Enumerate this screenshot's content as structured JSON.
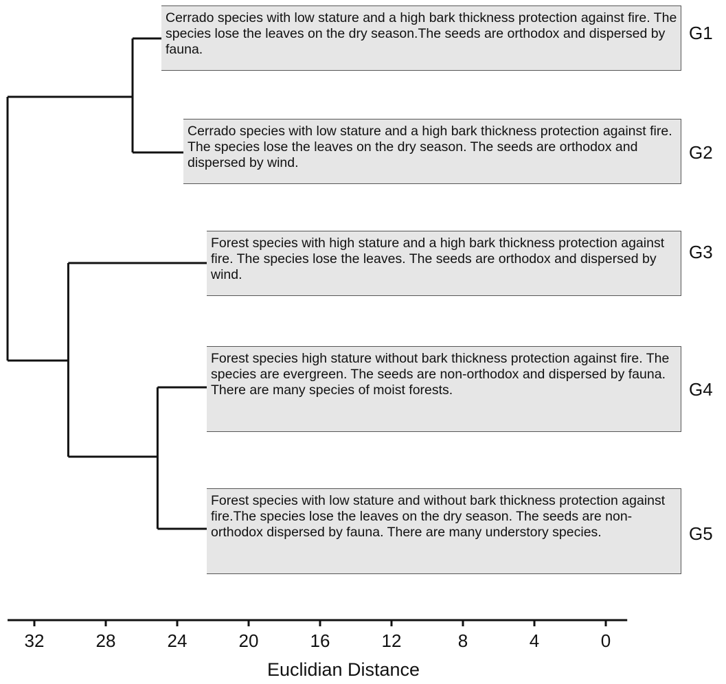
{
  "groups": [
    {
      "id": "G1",
      "label": "G1",
      "text": "Cerrado species with low stature and a high bark thickness protection against fire. The species lose the leaves on the dry season.The seeds are orthodox and dispersed by fauna."
    },
    {
      "id": "G2",
      "label": "G2",
      "text": "Cerrado species with low stature and a high bark thickness protection against fire. The species lose the leaves on the dry season. The seeds are orthodox and dispersed by wind."
    },
    {
      "id": "G3",
      "label": "G3",
      "text": "Forest species with high stature and a high bark thickness protection against fire. The species lose the leaves. The seeds are orthodox and dispersed by wind."
    },
    {
      "id": "G4",
      "label": "G4",
      "text": "Forest species high stature without bark thickness protection against fire. The species are evergreen.  The seeds are non-orthodox and dispersed by fauna. There are many species of moist forests."
    },
    {
      "id": "G5",
      "label": "G5",
      "text": "Forest species with low stature and without bark thickness protection against fire.The species lose the leaves on the dry season. The seeds are non-orthodox dispersed by fauna. There are many understory species."
    }
  ],
  "axis": {
    "title": "Euclidian Distance",
    "ticks": [
      "32",
      "28",
      "24",
      "20",
      "16",
      "12",
      "8",
      "4",
      "0"
    ],
    "range": [
      33.5,
      -1.2
    ]
  },
  "dendrogram": {
    "merges": [
      {
        "members": [
          "G1",
          "G2"
        ],
        "distance": 26.5
      },
      {
        "members": [
          "G4",
          "G5"
        ],
        "distance": 25.1
      },
      {
        "members": [
          "G3",
          "G4+G5"
        ],
        "distance": 30.1
      },
      {
        "members": [
          "G1+G2",
          "G3+G4+G5"
        ],
        "distance": 33.5
      }
    ]
  }
}
